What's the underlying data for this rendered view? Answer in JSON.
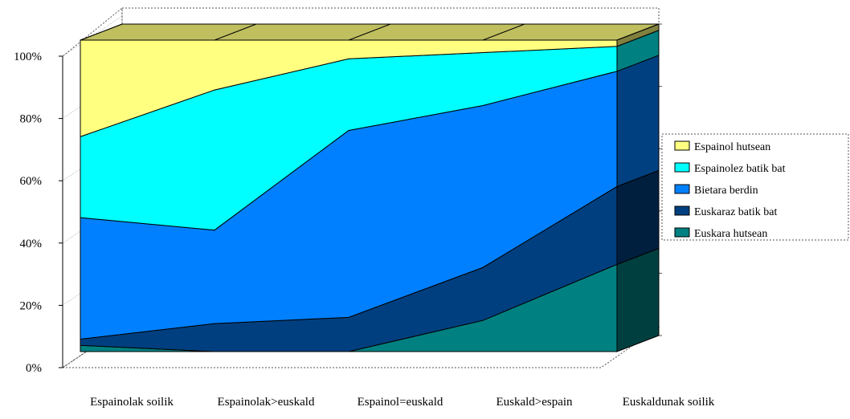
{
  "chart_data": {
    "type": "area",
    "stacked": "percent",
    "three_d": true,
    "categories": [
      "Espainolak soilik",
      "Espainolak>euskald",
      "Espainol=euskald",
      "Euskald>espain",
      "Euskaldunak soilik"
    ],
    "series": [
      {
        "name": "Euskara hutsean",
        "color": "#008080",
        "side_color": "#003f3f",
        "values": [
          2,
          0,
          0,
          10,
          28
        ]
      },
      {
        "name": "Euskaraz batik bat",
        "color": "#003f7f",
        "side_color": "#001f3f",
        "values": [
          2,
          9,
          11,
          17,
          25
        ]
      },
      {
        "name": "Bietara berdin",
        "color": "#0080ff",
        "side_color": "#004080",
        "values": [
          39,
          30,
          60,
          52,
          37
        ]
      },
      {
        "name": "Espainolez batik bat",
        "color": "#00ffff",
        "side_color": "#008080",
        "values": [
          26,
          45,
          23,
          17,
          8
        ]
      },
      {
        "name": "Espainol hutsean",
        "color": "#ffff80",
        "side_color": "#80803f",
        "values": [
          31,
          16,
          6,
          4,
          2
        ]
      }
    ],
    "y_ticks": [
      "0%",
      "20%",
      "40%",
      "60%",
      "80%",
      "100%"
    ],
    "ylim": [
      0,
      100
    ],
    "grid": false,
    "legend_position": "right"
  }
}
